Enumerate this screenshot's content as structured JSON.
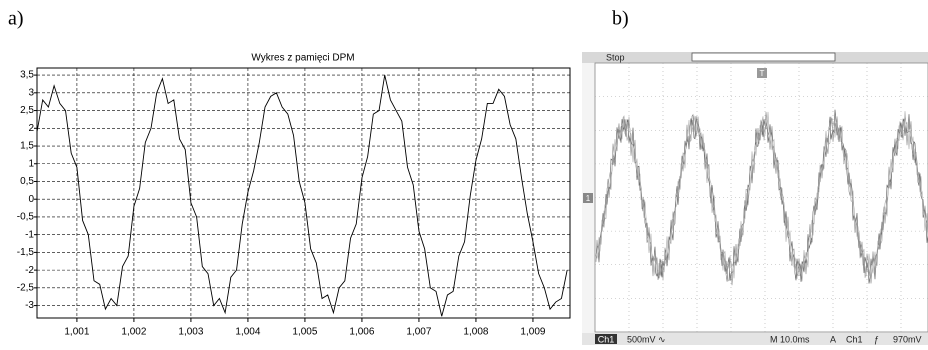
{
  "chart_data": {
    "type": "line",
    "title": "Wykres z pamięci DPM",
    "panel_label": "a)",
    "x": [
      1.0003,
      1.0004,
      1.0005,
      1.0006,
      1.0007,
      1.0008,
      1.0009,
      1.001,
      1.0011,
      1.0012,
      1.0013,
      1.0014,
      1.0015,
      1.0016,
      1.0017,
      1.0018,
      1.0019,
      1.002,
      1.0021,
      1.0022,
      1.0023,
      1.0024,
      1.0025,
      1.0026,
      1.0027,
      1.0028,
      1.0029,
      1.003,
      1.0031,
      1.0032,
      1.0033,
      1.0034,
      1.0035,
      1.0036,
      1.0037,
      1.0038,
      1.0039,
      1.004,
      1.0041,
      1.0042,
      1.0043,
      1.0044,
      1.0045,
      1.0046,
      1.0047,
      1.0048,
      1.0049,
      1.005,
      1.0051,
      1.0052,
      1.0053,
      1.0054,
      1.0055,
      1.0056,
      1.0057,
      1.0058,
      1.0059,
      1.006,
      1.0061,
      1.0062,
      1.0063,
      1.0064,
      1.0065,
      1.0066,
      1.0067,
      1.0068,
      1.0069,
      1.007,
      1.0071,
      1.0072,
      1.0073,
      1.0074,
      1.0075,
      1.0076,
      1.0077,
      1.0078,
      1.0079,
      1.008,
      1.0081,
      1.0082,
      1.0083,
      1.0084,
      1.0085,
      1.0086,
      1.0087,
      1.0088,
      1.0089,
      1.009,
      1.0091,
      1.0092,
      1.0093,
      1.0094,
      1.0095,
      1.0096
    ],
    "values": [
      1.9,
      2.8,
      2.6,
      3.2,
      2.7,
      2.5,
      1.3,
      0.9,
      -0.6,
      -1.0,
      -2.3,
      -2.4,
      -3.1,
      -2.8,
      -3.0,
      -1.9,
      -1.6,
      -0.2,
      0.3,
      1.6,
      2.0,
      3.0,
      3.4,
      2.7,
      2.8,
      1.7,
      1.4,
      -0.1,
      -0.5,
      -1.9,
      -2.1,
      -3.0,
      -2.8,
      -3.2,
      -2.2,
      -2.0,
      -0.7,
      0.2,
      0.8,
      1.6,
      2.6,
      2.9,
      3.0,
      2.6,
      2.4,
      1.8,
      0.5,
      -0.1,
      -1.4,
      -1.8,
      -2.8,
      -2.7,
      -3.2,
      -2.5,
      -2.3,
      -1.1,
      -0.7,
      0.6,
      1.2,
      2.4,
      2.5,
      3.5,
      2.8,
      2.5,
      2.2,
      0.9,
      0.4,
      -0.9,
      -1.4,
      -2.5,
      -2.6,
      -3.3,
      -2.7,
      -2.6,
      -1.6,
      -1.2,
      0.1,
      1.1,
      1.7,
      2.7,
      2.7,
      3.1,
      2.9,
      2.1,
      1.7,
      0.6,
      -0.4,
      -1.2,
      -2.1,
      -2.5,
      -3.1,
      -2.9,
      -2.8,
      -2.0
    ],
    "color": "#000000",
    "xlim": [
      1.0003,
      1.00965
    ],
    "xticks": [
      {
        "value": 1.001,
        "label": "1,001"
      },
      {
        "value": 1.002,
        "label": "1,002"
      },
      {
        "value": 1.003,
        "label": "1,003"
      },
      {
        "value": 1.004,
        "label": "1,004"
      },
      {
        "value": 1.005,
        "label": "1,005"
      },
      {
        "value": 1.006,
        "label": "1,006"
      },
      {
        "value": 1.007,
        "label": "1,007"
      },
      {
        "value": 1.008,
        "label": "1,008"
      },
      {
        "value": 1.009,
        "label": "1,009"
      }
    ],
    "ylim": [
      -3.35,
      3.7
    ],
    "yticks": [
      {
        "value": 3.5,
        "label": "3,5"
      },
      3,
      {
        "value": 2.5,
        "label": "2,5"
      },
      2,
      {
        "value": 1.5,
        "label": "1,5"
      },
      1,
      {
        "value": 0.5,
        "label": "0,5"
      },
      0,
      {
        "value": -0.5,
        "label": "-0,5"
      },
      -1,
      {
        "value": -1.5,
        "label": "-1,5"
      },
      -2,
      {
        "value": -2.5,
        "label": "-2,5"
      },
      -3
    ],
    "grid": true
  },
  "scope": {
    "panel_label": "b)",
    "status": "Stop",
    "trigger_marker": "T",
    "channel_marker": "1",
    "channel": "Ch1",
    "scale": "500mV",
    "coupling": "∿",
    "timebase": "M 10.0ms",
    "mode": "A",
    "trigger_channel": "Ch1",
    "slope": "ƒ",
    "trigger_level": "970mV"
  }
}
